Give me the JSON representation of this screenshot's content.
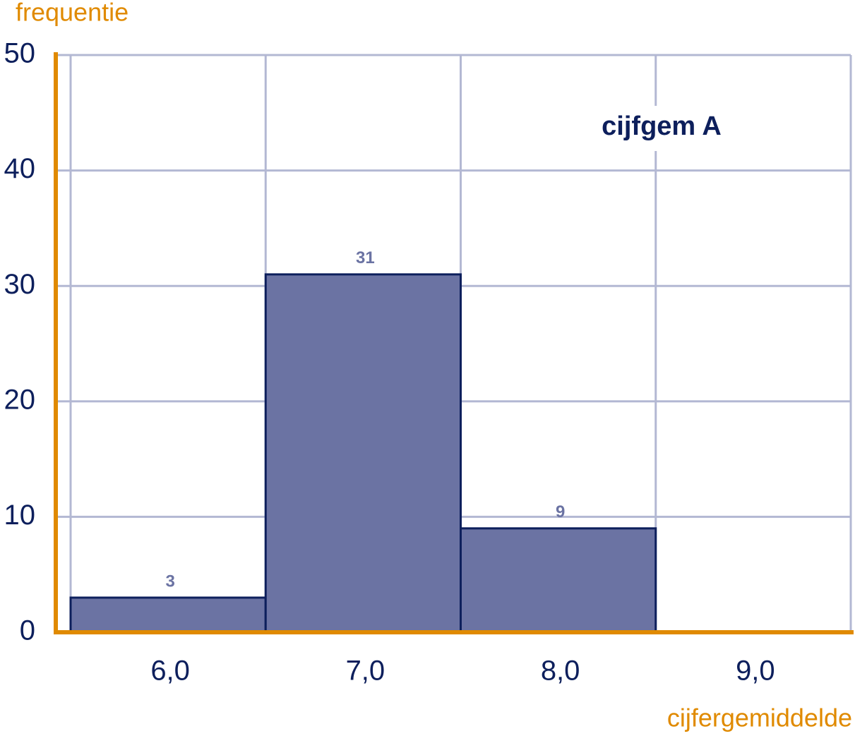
{
  "chart_data": {
    "type": "bar",
    "y_label": "frequentie",
    "x_label": "cijfergemiddelde",
    "annotation": "cijfgem A",
    "categories": [
      "6,0",
      "7,0",
      "8,0",
      "9,0"
    ],
    "values": [
      3,
      31,
      9,
      0
    ],
    "value_labels": [
      "3",
      "31",
      "9",
      null
    ],
    "color": "#6b73a3",
    "ylim": [
      0,
      50
    ],
    "yticks": [
      0,
      10,
      20,
      30,
      40,
      50
    ],
    "grid": true
  }
}
